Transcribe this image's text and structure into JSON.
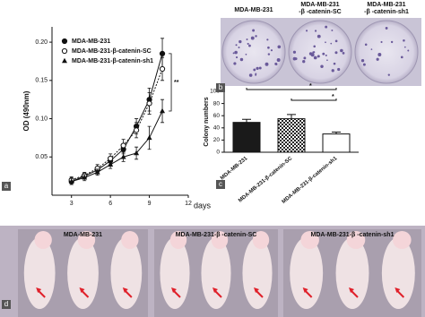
{
  "chart_data": [
    {
      "type": "line",
      "y_label": "OD (490nm)",
      "x_label": "days",
      "x": [
        3,
        4,
        5,
        6,
        7,
        8,
        9,
        10
      ],
      "series": [
        {
          "name": "MDA-MB-231",
          "color": "#111111",
          "marker": "filled-circle",
          "values": [
            0.018,
            0.025,
            0.033,
            0.045,
            0.06,
            0.09,
            0.125,
            0.185
          ],
          "errors": [
            0.004,
            0.004,
            0.004,
            0.005,
            0.006,
            0.01,
            0.015,
            0.02
          ]
        },
        {
          "name": "MDA-MB-231-β-catenin-SC",
          "color": "#111111",
          "marker": "open-circle",
          "values": [
            0.02,
            0.026,
            0.035,
            0.048,
            0.065,
            0.085,
            0.12,
            0.165
          ],
          "errors": [
            0.004,
            0.004,
            0.005,
            0.006,
            0.008,
            0.01,
            0.014,
            0.015
          ]
        },
        {
          "name": "MDA-MB-231-β-catenin-sh1",
          "color": "#111111",
          "marker": "triangle",
          "values": [
            0.018,
            0.023,
            0.03,
            0.04,
            0.05,
            0.055,
            0.075,
            0.11
          ],
          "errors": [
            0.004,
            0.004,
            0.004,
            0.005,
            0.006,
            0.008,
            0.015,
            0.015
          ]
        }
      ],
      "xlim": [
        1.5,
        12
      ],
      "xticks": [
        3,
        6,
        9,
        12
      ],
      "ylim": [
        0,
        0.22
      ],
      "yticks": [
        0.05,
        {
          "value": 0.1,
          "label": "0.10"
        },
        0.15,
        {
          "value": 0.2,
          "label": "0.20"
        }
      ],
      "significance": {
        "label": "**",
        "between_series": [
          0,
          2
        ]
      }
    },
    {
      "type": "bar",
      "y_label": "Colony numbers",
      "categories": [
        "MDA-MB-231",
        "MDA-MB-231-β-catenin-SC",
        "MDA-MB-231-β-catenin-sh1"
      ],
      "values": [
        49,
        55,
        30
      ],
      "errors": [
        5,
        7,
        3
      ],
      "fills": [
        "#1a1a1a",
        "checker",
        "#ffffff"
      ],
      "ylim": [
        0,
        100
      ],
      "yticks": [
        0,
        20,
        40,
        60,
        80,
        100
      ],
      "comparisons": [
        {
          "from": 0,
          "to": 2,
          "label": "*"
        },
        {
          "from": 1,
          "to": 2,
          "label": "*"
        }
      ]
    }
  ],
  "panel_labels": [
    "a",
    "b",
    "c",
    "d"
  ],
  "colony_plates": {
    "labels": [
      [
        "MDA-MB-231"
      ],
      [
        "MDA-MB-231",
        "-β -catenin-SC"
      ],
      [
        "MDA-MB-231",
        "-β -catenin-sh1"
      ]
    ]
  },
  "mouse_photos": {
    "labels": [
      "MDA-MB-231",
      "MDA-MB-231-β -catenin-SC",
      "MDA-MB-231-β -catenin-sh1"
    ]
  }
}
